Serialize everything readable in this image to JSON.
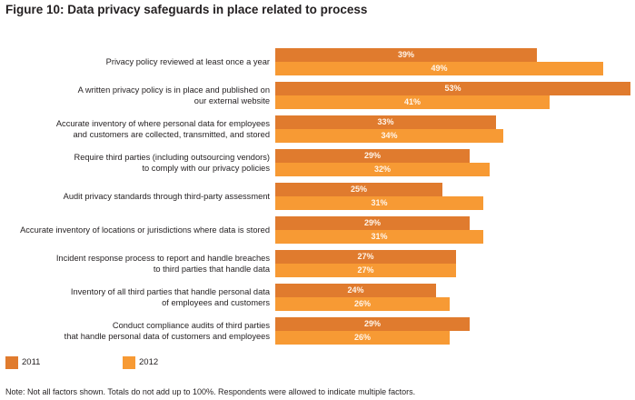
{
  "chart_data": {
    "type": "bar",
    "orientation": "horizontal",
    "title": "Figure 10: Data privacy safeguards in place related to process",
    "xlabel": "",
    "ylabel": "",
    "xlim": [
      0,
      53
    ],
    "grid": false,
    "legend_position": "bottom-left",
    "categories": [
      [
        "Privacy policy reviewed at least once a year"
      ],
      [
        "A written privacy policy is in place and published on",
        "our external website"
      ],
      [
        "Accurate inventory of where personal data for employees",
        "and customers are collected, transmitted, and stored"
      ],
      [
        "Require third parties (including outsourcing vendors)",
        "to comply with our privacy policies"
      ],
      [
        "Audit privacy standards through third-party assessment"
      ],
      [
        "Accurate inventory of locations or jurisdictions where data is stored"
      ],
      [
        "Incident response process to report and handle breaches",
        "to third parties that handle data"
      ],
      [
        "Inventory of all third parties that handle personal data",
        "of employees and customers"
      ],
      [
        "Conduct compliance audits of third parties",
        "that handle personal data of customers and employees"
      ]
    ],
    "series": [
      {
        "name": "2011",
        "color": "#e07b2e",
        "values": [
          39,
          53,
          33,
          29,
          25,
          29,
          27,
          24,
          29
        ]
      },
      {
        "name": "2012",
        "color": "#f79a34",
        "values": [
          49,
          41,
          34,
          32,
          31,
          31,
          27,
          26,
          26
        ]
      }
    ],
    "value_suffix": "%",
    "note": "Note: Not all factors shown. Totals do not add up to 100%. Respondents were allowed to indicate multiple factors."
  }
}
